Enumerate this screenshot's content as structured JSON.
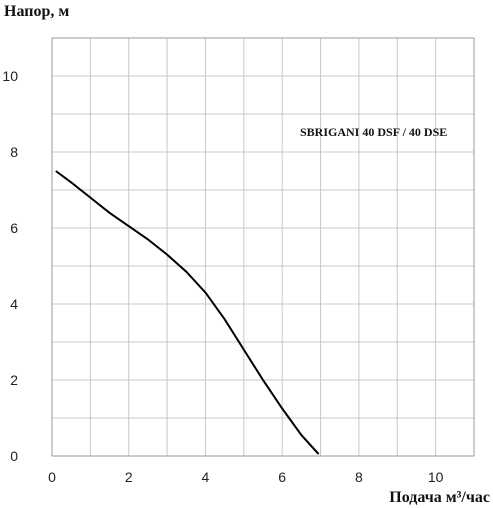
{
  "chart_data": {
    "type": "line",
    "ylabel": "Напор, м",
    "xlabel": "Подача м³/час",
    "annotation": "SBRIGANI 40 DSF / 40 DSE",
    "xlim": [
      0,
      11
    ],
    "ylim": [
      0,
      11
    ],
    "x_ticks": [
      0,
      2,
      4,
      6,
      8,
      10
    ],
    "y_ticks": [
      0,
      2,
      4,
      6,
      8,
      10
    ],
    "grid": true,
    "series": [
      {
        "x": [
          0.1,
          0.5,
          1.0,
          1.5,
          2.0,
          2.5,
          3.0,
          3.5,
          4.0,
          4.5,
          5.0,
          5.5,
          6.0,
          6.5,
          6.95
        ],
        "y": [
          7.5,
          7.2,
          6.8,
          6.4,
          6.05,
          5.7,
          5.3,
          4.85,
          4.3,
          3.6,
          2.8,
          2.0,
          1.25,
          0.55,
          0.05
        ]
      }
    ]
  }
}
